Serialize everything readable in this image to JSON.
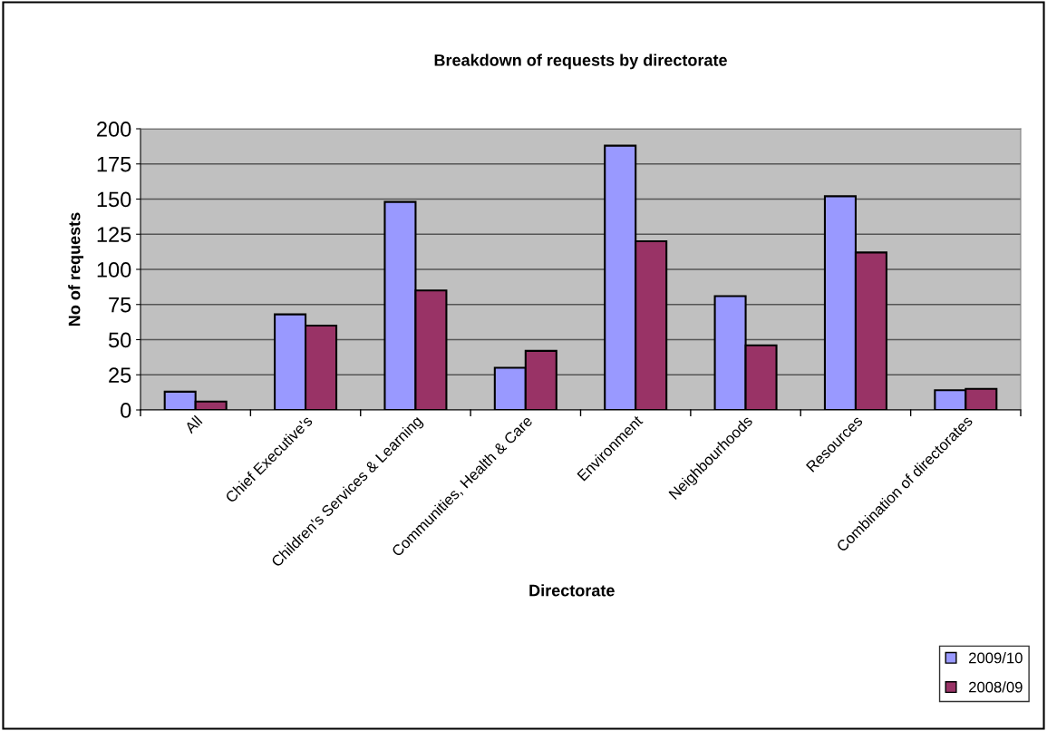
{
  "chart_data": {
    "type": "bar",
    "title": "Breakdown of requests by directorate",
    "xlabel": "Directorate",
    "ylabel": "No of requests",
    "categories": [
      "All",
      "Chief Executive's",
      "Children's Services & Learning",
      "Communities, Health & Care",
      "Environment",
      "Neighbourhoods",
      "Resources",
      "Combination of directorates"
    ],
    "series": [
      {
        "name": "2009/10",
        "color": "#9999ff",
        "values": [
          13,
          68,
          148,
          30,
          188,
          81,
          152,
          14
        ]
      },
      {
        "name": "2008/09",
        "color": "#993366",
        "values": [
          6,
          60,
          85,
          42,
          120,
          46,
          112,
          15
        ]
      }
    ],
    "ylim": [
      0,
      200
    ],
    "yticks": [
      0,
      25,
      50,
      75,
      100,
      125,
      150,
      175,
      200
    ],
    "grid": "y",
    "legend": "bottom right"
  }
}
